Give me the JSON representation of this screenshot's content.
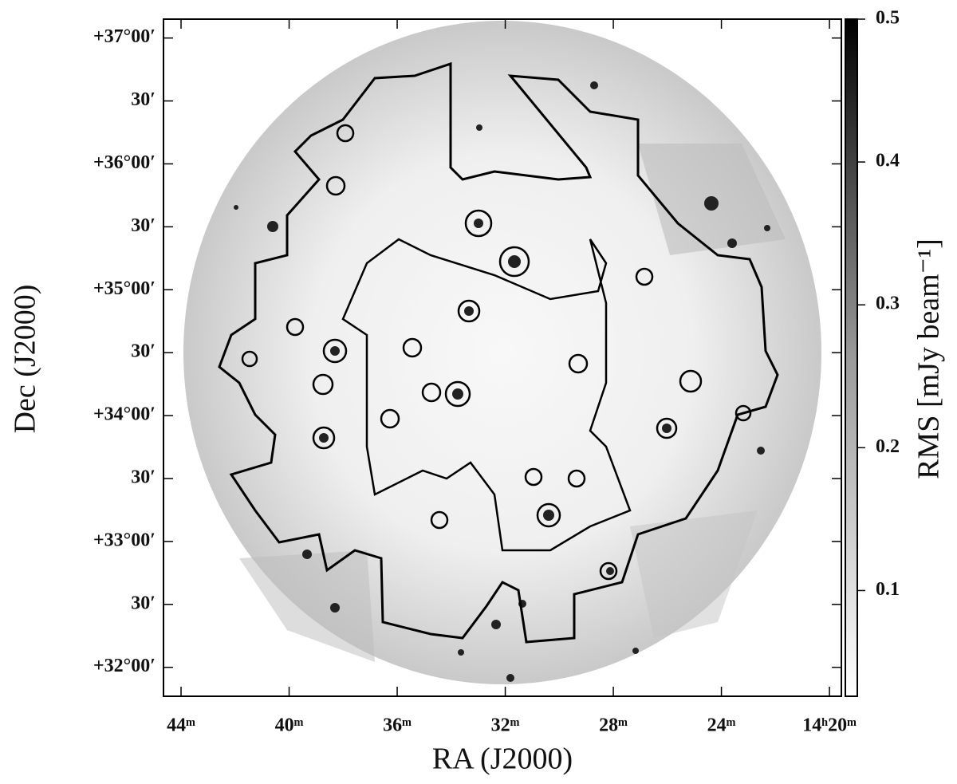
{
  "chart_data": {
    "type": "image",
    "xlabel": "RA (J2000)",
    "ylabel": "Dec (J2000)",
    "xlim": [
      44.65,
      19.56
    ],
    "xticks": [
      {
        "value": 44,
        "label": "44ᵐ"
      },
      {
        "value": 40,
        "label": "40ᵐ"
      },
      {
        "value": 36,
        "label": "36ᵐ"
      },
      {
        "value": 32,
        "label": "32ᵐ"
      },
      {
        "value": 28,
        "label": "28ᵐ"
      },
      {
        "value": 24,
        "label": "24ᵐ"
      },
      {
        "value": 20,
        "label": "14ʰ20ᵐ"
      }
    ],
    "ylim": [
      31.77,
      37.15
    ],
    "yticks": [
      {
        "value": 37,
        "label": "+37°00′"
      },
      {
        "value": 36.5,
        "label": "30′"
      },
      {
        "value": 36,
        "label": "+36°00′"
      },
      {
        "value": 35.5,
        "label": "30′"
      },
      {
        "value": 35,
        "label": "+35°00′"
      },
      {
        "value": 34.5,
        "label": "30′"
      },
      {
        "value": 34,
        "label": "+34°00′"
      },
      {
        "value": 33.5,
        "label": "30′"
      },
      {
        "value": 33,
        "label": "+33°00′"
      },
      {
        "value": 32.5,
        "label": "30′"
      },
      {
        "value": 32,
        "label": "+32°00′"
      }
    ],
    "colorbar": {
      "label": "RMS [mJy beam⁻¹]",
      "lim": [
        0.026,
        0.5
      ],
      "ticks": [
        0.1,
        0.2,
        0.3,
        0.4,
        0.5
      ]
    }
  }
}
